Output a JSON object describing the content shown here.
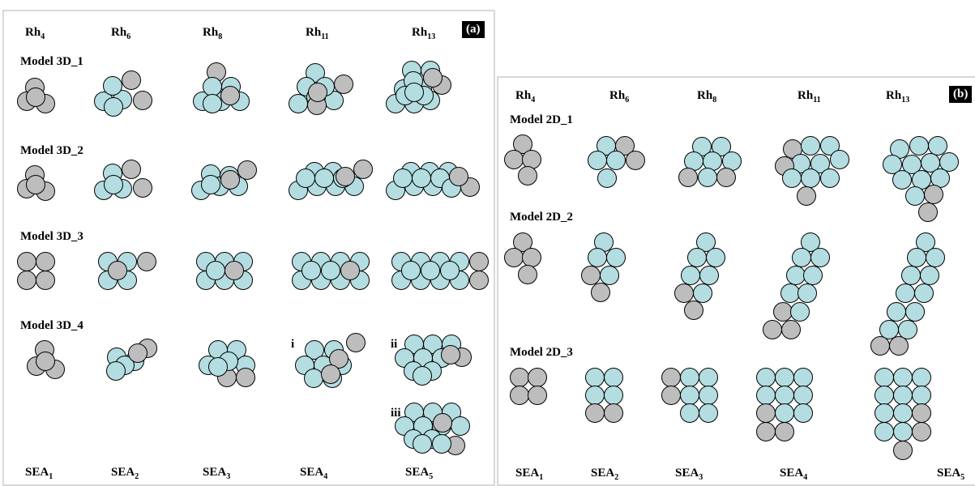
{
  "colors": {
    "rh_atom": "#b3dde0",
    "sea_atom": "#bdbdbd",
    "panel_border": "#d8d8d8"
  },
  "panel_a": {
    "tag": "(a)",
    "header": [
      {
        "base": "Rh",
        "sub": "4"
      },
      {
        "base": "Rh",
        "sub": "6"
      },
      {
        "base": "Rh",
        "sub": "8"
      },
      {
        "base": "Rh",
        "sub": "11"
      },
      {
        "base": "Rh",
        "sub": "13"
      }
    ],
    "models": [
      "Model 3D_1",
      "Model 3D_2",
      "Model 3D_3",
      "Model 3D_4"
    ],
    "romans": [
      "i",
      "ii",
      "iii"
    ],
    "footer": [
      {
        "base": "SEA",
        "sub": "1"
      },
      {
        "base": "SEA",
        "sub": "2"
      },
      {
        "base": "SEA",
        "sub": "3"
      },
      {
        "base": "SEA",
        "sub": "4"
      },
      {
        "base": "SEA",
        "sub": "5"
      }
    ]
  },
  "panel_b": {
    "tag": "(b)",
    "header": [
      {
        "base": "Rh",
        "sub": "4"
      },
      {
        "base": "Rh",
        "sub": "6"
      },
      {
        "base": "Rh",
        "sub": "8"
      },
      {
        "base": "Rh",
        "sub": "11"
      },
      {
        "base": "Rh",
        "sub": "13"
      }
    ],
    "models": [
      "Model 2D_1",
      "Model 2D_2",
      "Model 2D_3"
    ],
    "footer": [
      {
        "base": "SEA",
        "sub": "1"
      },
      {
        "base": "SEA",
        "sub": "2"
      },
      {
        "base": "SEA",
        "sub": "3"
      },
      {
        "base": "SEA",
        "sub": "4"
      },
      {
        "base": "SEA",
        "sub": "5"
      }
    ]
  }
}
